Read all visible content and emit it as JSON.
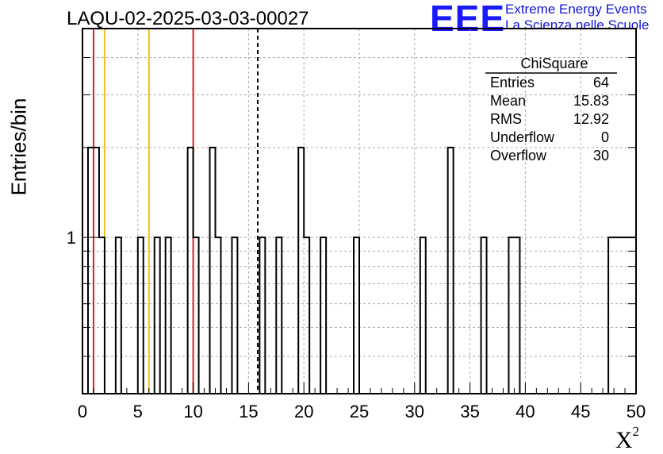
{
  "header": {
    "run_title": "LAQU-02-2025-03-03-00027",
    "logo_mark": "EEE",
    "logo_line1": "Extreme Energy Events",
    "logo_line2": "La Scienza nelle Scuole"
  },
  "chart_data": {
    "type": "bar",
    "style": "step-histogram",
    "ylabel": "Entries/bin",
    "xlabel": "X",
    "xlabel_superscript": "2",
    "xlim": [
      0,
      50
    ],
    "ylim": [
      0.3,
      5
    ],
    "y_scale": "log",
    "grid": true,
    "x_ticks": [
      "0",
      "5",
      "10",
      "15",
      "20",
      "25",
      "30",
      "35",
      "40",
      "45",
      "50"
    ],
    "y_tick_labels": [
      "1"
    ],
    "bin_width": 0.5,
    "bins": [
      {
        "x": 0.5,
        "count": 2
      },
      {
        "x": 1.0,
        "count": 2
      },
      {
        "x": 1.5,
        "count": 1
      },
      {
        "x": 3.0,
        "count": 1
      },
      {
        "x": 5.0,
        "count": 1
      },
      {
        "x": 6.5,
        "count": 1
      },
      {
        "x": 7.5,
        "count": 1
      },
      {
        "x": 9.5,
        "count": 2
      },
      {
        "x": 10.0,
        "count": 1
      },
      {
        "x": 11.5,
        "count": 2
      },
      {
        "x": 12.0,
        "count": 1
      },
      {
        "x": 13.5,
        "count": 1
      },
      {
        "x": 16.0,
        "count": 1
      },
      {
        "x": 17.5,
        "count": 1
      },
      {
        "x": 19.5,
        "count": 2
      },
      {
        "x": 20.0,
        "count": 1
      },
      {
        "x": 21.5,
        "count": 1
      },
      {
        "x": 24.5,
        "count": 1
      },
      {
        "x": 30.5,
        "count": 1
      },
      {
        "x": 33.0,
        "count": 2
      },
      {
        "x": 36.0,
        "count": 1
      },
      {
        "x": 38.5,
        "count": 1
      },
      {
        "x": 39.0,
        "count": 1
      },
      {
        "x": 47.5,
        "count": 1
      },
      {
        "x": 48.0,
        "count": 1
      },
      {
        "x": 48.5,
        "count": 1
      },
      {
        "x": 49.0,
        "count": 1
      },
      {
        "x": 49.5,
        "count": 1
      }
    ],
    "reference_lines": [
      {
        "x": 1.0,
        "color": "#dd2020",
        "dashed": false
      },
      {
        "x": 2.0,
        "color": "#f0c020",
        "dashed": false
      },
      {
        "x": 6.0,
        "color": "#f0c020",
        "dashed": false
      },
      {
        "x": 10.0,
        "color": "#dd2020",
        "dashed": false
      },
      {
        "x": 15.83,
        "color": "#000000",
        "dashed": true
      }
    ],
    "stats_box": {
      "name": "ChiSquare",
      "rows": [
        {
          "label": "Entries",
          "value": "64"
        },
        {
          "label": "Mean",
          "value": "15.83"
        },
        {
          "label": "RMS",
          "value": "12.92"
        },
        {
          "label": "Underflow",
          "value": "0"
        },
        {
          "label": "Overflow",
          "value": "30"
        }
      ]
    }
  }
}
